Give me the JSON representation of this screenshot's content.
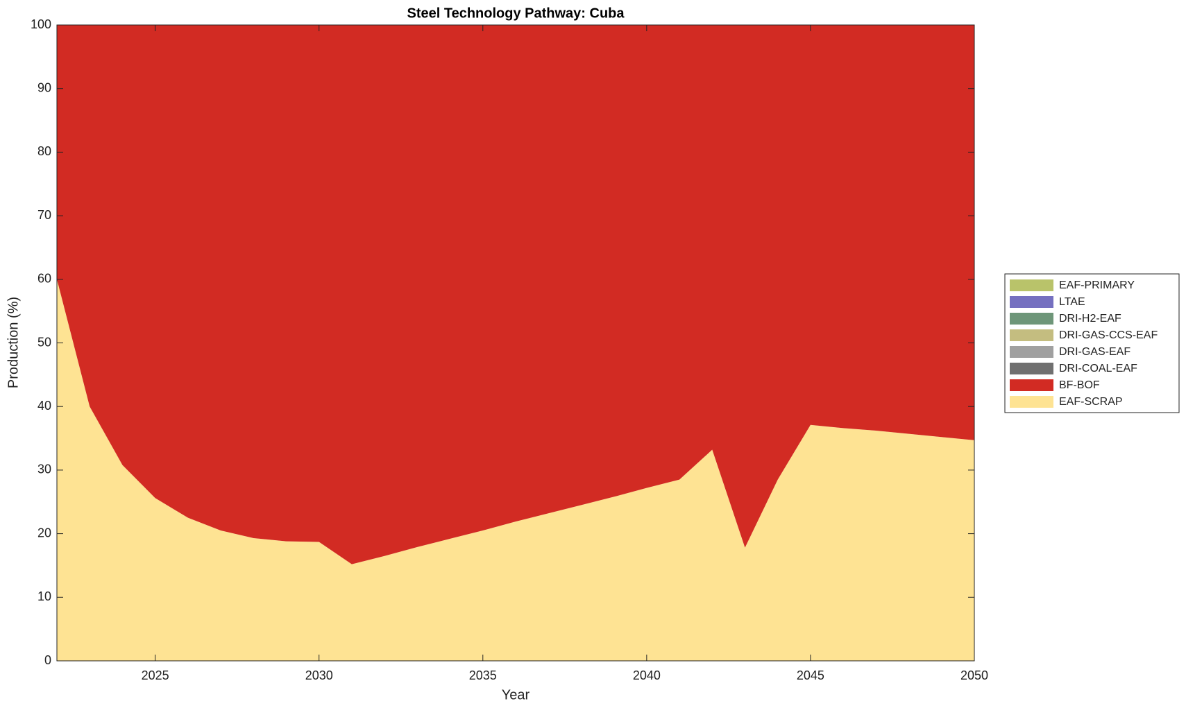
{
  "chart_data": {
    "type": "stacked_area",
    "title": "Steel Technology Pathway: Cuba",
    "xlabel": "Year",
    "ylabel": "Production (%)",
    "x": [
      2022,
      2023,
      2024,
      2025,
      2026,
      2027,
      2028,
      2029,
      2030,
      2031,
      2032,
      2033,
      2034,
      2035,
      2036,
      2037,
      2038,
      2039,
      2040,
      2041,
      2042,
      2043,
      2044,
      2045,
      2046,
      2047,
      2048,
      2049,
      2050
    ],
    "series": [
      {
        "name": "EAF-SCRAP",
        "color": "#fee393",
        "values": [
          60,
          40,
          30.8,
          25.6,
          22.5,
          20.5,
          19.3,
          18.8,
          18.7,
          15.2,
          16.5,
          17.9,
          19.2,
          20.5,
          21.9,
          23.2,
          24.5,
          25.8,
          27.2,
          28.5,
          33.2,
          17.8,
          28.5,
          37.1,
          36.6,
          36.2,
          35.7,
          35.2,
          34.7
        ]
      },
      {
        "name": "BF-BOF",
        "color": "#d22b23",
        "values": [
          40,
          60,
          69.2,
          74.4,
          77.5,
          79.5,
          80.7,
          81.2,
          81.3,
          84.8,
          83.5,
          82.1,
          80.8,
          79.5,
          78.1,
          76.8,
          75.5,
          74.2,
          72.8,
          71.5,
          66.8,
          82.2,
          71.5,
          62.9,
          63.4,
          63.8,
          64.3,
          64.8,
          65.3
        ]
      },
      {
        "name": "DRI-COAL-EAF",
        "color": "#707070",
        "values": [
          0,
          0,
          0,
          0,
          0,
          0,
          0,
          0,
          0,
          0,
          0,
          0,
          0,
          0,
          0,
          0,
          0,
          0,
          0,
          0,
          0,
          0,
          0,
          0,
          0,
          0,
          0,
          0,
          0
        ]
      },
      {
        "name": "DRI-GAS-EAF",
        "color": "#a0a0a0",
        "values": [
          0,
          0,
          0,
          0,
          0,
          0,
          0,
          0,
          0,
          0,
          0,
          0,
          0,
          0,
          0,
          0,
          0,
          0,
          0,
          0,
          0,
          0,
          0,
          0,
          0,
          0,
          0,
          0,
          0
        ]
      },
      {
        "name": "DRI-GAS-CCS-EAF",
        "color": "#c4bd80",
        "values": [
          0,
          0,
          0,
          0,
          0,
          0,
          0,
          0,
          0,
          0,
          0,
          0,
          0,
          0,
          0,
          0,
          0,
          0,
          0,
          0,
          0,
          0,
          0,
          0,
          0,
          0,
          0,
          0,
          0
        ]
      },
      {
        "name": "DRI-H2-EAF",
        "color": "#6e9679",
        "values": [
          0,
          0,
          0,
          0,
          0,
          0,
          0,
          0,
          0,
          0,
          0,
          0,
          0,
          0,
          0,
          0,
          0,
          0,
          0,
          0,
          0,
          0,
          0,
          0,
          0,
          0,
          0,
          0,
          0
        ]
      },
      {
        "name": "LTAE",
        "color": "#7570c0",
        "values": [
          0,
          0,
          0,
          0,
          0,
          0,
          0,
          0,
          0,
          0,
          0,
          0,
          0,
          0,
          0,
          0,
          0,
          0,
          0,
          0,
          0,
          0,
          0,
          0,
          0,
          0,
          0,
          0,
          0
        ]
      },
      {
        "name": "EAF-PRIMARY",
        "color": "#b9c36a",
        "values": [
          0,
          0,
          0,
          0,
          0,
          0,
          0,
          0,
          0,
          0,
          0,
          0,
          0,
          0,
          0,
          0,
          0,
          0,
          0,
          0,
          0,
          0,
          0,
          0,
          0,
          0,
          0,
          0,
          0
        ]
      }
    ],
    "xlim": [
      2022,
      2050
    ],
    "xticks": [
      2025,
      2030,
      2035,
      2040,
      2045,
      2050
    ],
    "ylim": [
      0,
      100
    ],
    "yticks": [
      0,
      10,
      20,
      30,
      40,
      50,
      60,
      70,
      80,
      90,
      100
    ],
    "legend": "right"
  }
}
